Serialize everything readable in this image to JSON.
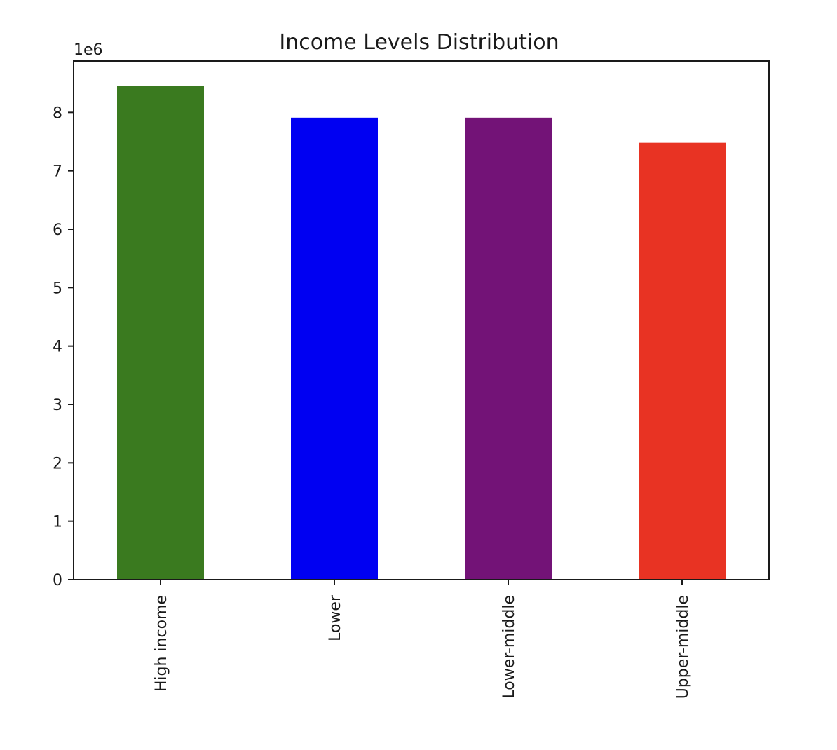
{
  "chart_data": {
    "type": "bar",
    "title": "Income Levels Distribution",
    "xlabel": "",
    "ylabel": "",
    "categories": [
      "High income",
      "Lower",
      "Lower-middle",
      "Upper-middle"
    ],
    "values": [
      8460000,
      7910000,
      7910000,
      7480000
    ],
    "colors": [
      "#3a7a1f",
      "#0000f2",
      "#731377",
      "#e83323"
    ],
    "ylim": [
      0,
      8880000
    ],
    "yticks": [
      0,
      1,
      2,
      3,
      4,
      5,
      6,
      7,
      8
    ],
    "y_scale_label": "1e6",
    "y_scale_factor": 1000000,
    "grid": false,
    "legend": false
  }
}
